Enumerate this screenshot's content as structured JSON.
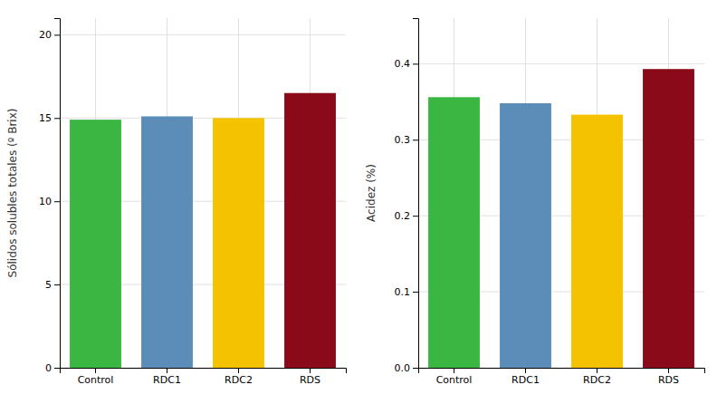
{
  "chart_data": [
    {
      "type": "bar",
      "categories": [
        "Control",
        "RDC1",
        "RDC2",
        "RDS"
      ],
      "values": [
        14.9,
        15.1,
        15.0,
        16.5
      ],
      "colors": [
        "#3CB643",
        "#5B8DB8",
        "#F5C200",
        "#8B0A1A"
      ],
      "ylabel": "Sólidos solubles totales (º Brix)",
      "ylim": [
        0,
        21
      ],
      "yticks": [
        0,
        5,
        10,
        15,
        20
      ],
      "grid": true
    },
    {
      "type": "bar",
      "categories": [
        "Control",
        "RDC1",
        "RDC2",
        "RDS"
      ],
      "values": [
        0.356,
        0.348,
        0.333,
        0.393
      ],
      "colors": [
        "#3CB643",
        "#5B8DB8",
        "#F5C200",
        "#8B0A1A"
      ],
      "ylabel": "Acidez (%)",
      "ylim": [
        0,
        0.46
      ],
      "yticks": [
        {
          "value": 0,
          "label": "0.0"
        },
        0.1,
        0.2,
        0.3,
        0.4
      ],
      "grid": true
    }
  ]
}
